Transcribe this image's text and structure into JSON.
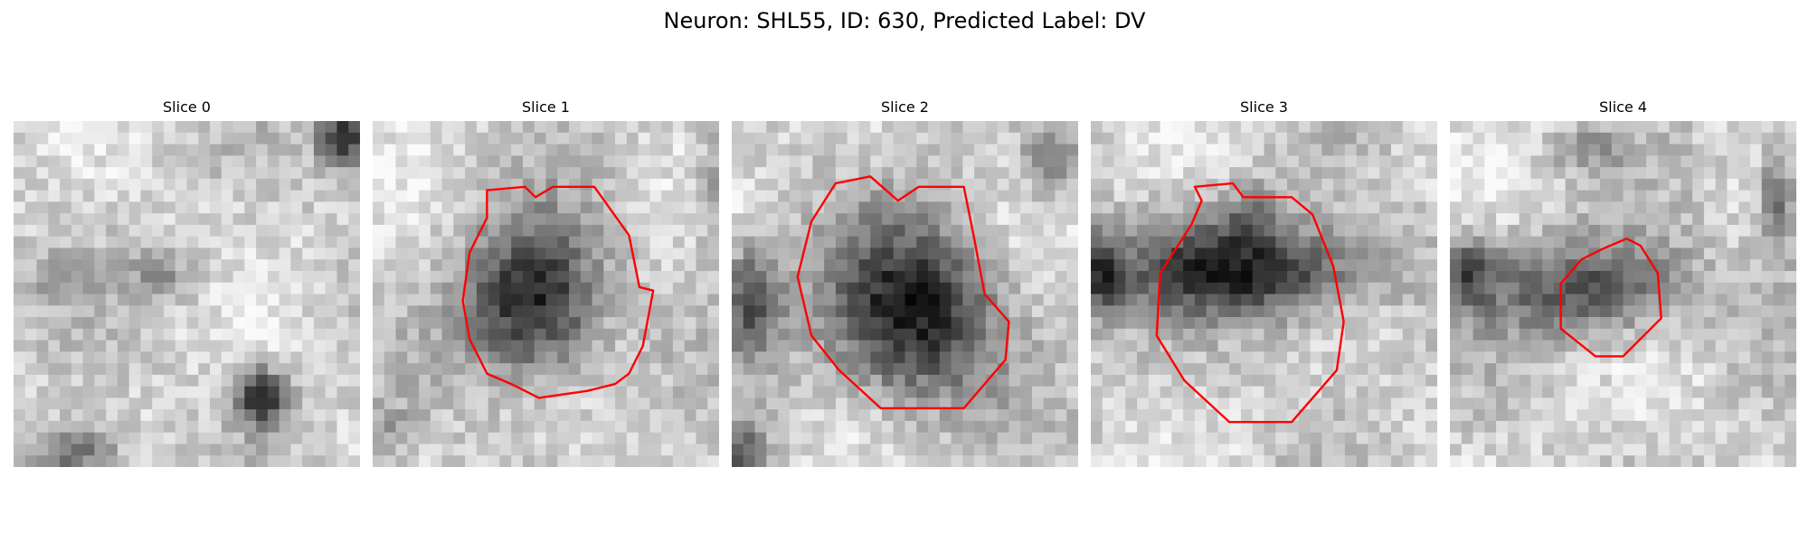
{
  "figure": {
    "title": "Neuron: SHL55, ID: 630, Predicted Label: DV",
    "contour_color": "#ff0000",
    "colormap": "gray",
    "panels": [
      {
        "title": "Slice 0",
        "has_contour": false
      },
      {
        "title": "Slice 1",
        "has_contour": true
      },
      {
        "title": "Slice 2",
        "has_contour": true
      },
      {
        "title": "Slice 3",
        "has_contour": true
      },
      {
        "title": "Slice 4",
        "has_contour": true
      }
    ]
  }
}
